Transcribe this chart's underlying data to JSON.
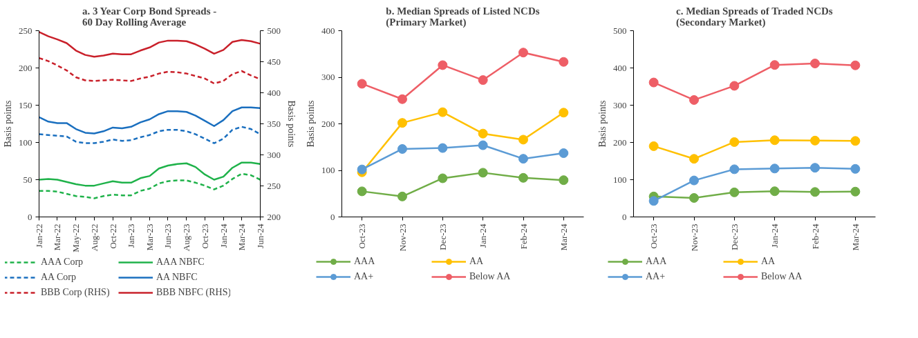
{
  "chart_data": [
    {
      "type": "line",
      "title": "a. 3 Year Corp Bond Spreads -\n60 Day Rolling Average",
      "ylabel": "Basis points",
      "y2label": "Basis points",
      "x": [
        "2022-01-03",
        "2022-02-09",
        "2022-03-17",
        "2022-04-23",
        "2022-05-30",
        "2022-07-06",
        "2022-08-11",
        "2022-09-17",
        "2022-10-24",
        "2022-11-30",
        "2023-01-05",
        "2023-02-11",
        "2023-03-20",
        "2023-04-26",
        "2023-06-01",
        "2023-07-08",
        "2023-08-14",
        "2023-09-19",
        "2023-10-26",
        "2023-12-02",
        "2024-01-08",
        "2024-02-13",
        "2024-03-21",
        "2024-04-27",
        "2024-06-03"
      ],
      "xlim": [
        "2022-01-03",
        "2024-06-03"
      ],
      "xticks": [
        {
          "value": "2022-01-03",
          "label": "Jan-22"
        },
        {
          "value": "2022-03-17",
          "label": "Mar-22"
        },
        {
          "value": "2022-05-30",
          "label": "May-22"
        },
        {
          "value": "2022-08-11",
          "label": "Aug-22"
        },
        {
          "value": "2022-10-24",
          "label": "Oct-22"
        },
        {
          "value": "2023-01-05",
          "label": "Jan-23"
        },
        {
          "value": "2023-03-20",
          "label": "Mar-23"
        },
        {
          "value": "2023-06-01",
          "label": "Jun-23"
        },
        {
          "value": "2023-08-14",
          "label": "Aug-23"
        },
        {
          "value": "2023-10-26",
          "label": "Oct-23"
        },
        {
          "value": "2024-01-08",
          "label": "Jan-24"
        },
        {
          "value": "2024-03-21",
          "label": "Mar-24"
        },
        {
          "value": "2024-06-03",
          "label": "Jun-24"
        }
      ],
      "ylim": [
        0,
        250
      ],
      "yticks": [
        0,
        50,
        100,
        150,
        200,
        250
      ],
      "y2lim": [
        200,
        500
      ],
      "y2ticks": [
        200,
        250,
        300,
        350,
        400,
        450,
        500
      ],
      "grid": false,
      "legend": "bottom",
      "marker": "none",
      "series": [
        {
          "name": "AAA Corp",
          "color": "#1fb24a",
          "line_style": "dashed",
          "values": [
            35,
            35,
            34,
            31,
            28,
            27,
            25,
            28,
            30,
            29,
            29,
            35,
            38,
            45,
            48,
            49,
            49,
            46,
            42,
            37,
            42,
            51,
            58,
            56,
            50
          ]
        },
        {
          "name": "AAA NBFC",
          "color": "#1fb24a",
          "line_style": "solid",
          "values": [
            50,
            51,
            50,
            47,
            44,
            42,
            42,
            45,
            48,
            46,
            46,
            52,
            55,
            65,
            69,
            71,
            72,
            67,
            57,
            50,
            54,
            66,
            73,
            73,
            71
          ]
        },
        {
          "name": "AA Corp",
          "color": "#1a6fbf",
          "line_style": "dashed",
          "values": [
            111,
            110,
            109,
            108,
            101,
            99,
            99,
            101,
            104,
            102,
            103,
            107,
            110,
            115,
            117,
            117,
            115,
            111,
            105,
            99,
            105,
            117,
            121,
            118,
            111
          ]
        },
        {
          "name": "AA NBFC",
          "color": "#1a6fbf",
          "line_style": "solid",
          "values": [
            134,
            128,
            126,
            126,
            118,
            113,
            112,
            115,
            120,
            119,
            121,
            127,
            131,
            138,
            142,
            142,
            141,
            136,
            129,
            122,
            130,
            142,
            147,
            147,
            146
          ]
        },
        {
          "name": "BBB Corp (RHS)",
          "color": "#c9202a",
          "line_style": "dashed",
          "axis": "y2",
          "values": [
            456,
            451,
            444,
            436,
            425,
            420,
            419,
            420,
            421,
            420,
            419,
            423,
            426,
            431,
            434,
            433,
            431,
            427,
            423,
            415,
            419,
            430,
            435,
            428,
            422
          ]
        },
        {
          "name": "BBB NBFC (RHS)",
          "color": "#c9202a",
          "line_style": "solid",
          "axis": "y2",
          "values": [
            498,
            491,
            486,
            480,
            468,
            461,
            458,
            460,
            463,
            462,
            462,
            468,
            473,
            481,
            484,
            484,
            483,
            478,
            471,
            463,
            469,
            482,
            485,
            483,
            479
          ]
        }
      ]
    },
    {
      "type": "line",
      "title": "b. Median Spreads of Listed NCDs\n(Primary Market)",
      "ylabel": "Basis points",
      "categories": [
        "Oct-23",
        "Nov-23",
        "Dec-23",
        "Jan-24",
        "Feb-24",
        "Mar-24"
      ],
      "ylim": [
        0,
        400
      ],
      "yticks": [
        0,
        100,
        200,
        300,
        400
      ],
      "grid": false,
      "legend": "bottom",
      "marker": "circle",
      "line_style": "solid",
      "series": [
        {
          "name": "AAA",
          "color": "#70ad47",
          "values": [
            55,
            44,
            83,
            95,
            84,
            79
          ]
        },
        {
          "name": "AA",
          "color": "#ffc000",
          "values": [
            96,
            202,
            225,
            179,
            166,
            224
          ]
        },
        {
          "name": "AA+",
          "color": "#5b9bd5",
          "values": [
            102,
            146,
            148,
            154,
            125,
            137
          ]
        },
        {
          "name": "Below AA",
          "color": "#ee5e66",
          "values": [
            286,
            253,
            326,
            294,
            353,
            333
          ]
        }
      ]
    },
    {
      "type": "line",
      "title": "c. Median Spreads of Traded NCDs\n(Secondary Market)",
      "ylabel": "Basis points",
      "categories": [
        "Oct-23",
        "Nov-23",
        "Dec-23",
        "Jan-24",
        "Feb-24",
        "Mar-24"
      ],
      "ylim": [
        0,
        500
      ],
      "yticks": [
        0,
        100,
        200,
        300,
        400,
        500
      ],
      "grid": false,
      "legend": "bottom",
      "marker": "circle",
      "line_style": "solid",
      "series": [
        {
          "name": "AAA",
          "color": "#70ad47",
          "values": [
            55,
            51,
            66,
            69,
            67,
            68
          ]
        },
        {
          "name": "AA",
          "color": "#ffc000",
          "values": [
            190,
            156,
            201,
            206,
            205,
            204
          ]
        },
        {
          "name": "AA+",
          "color": "#5b9bd5",
          "values": [
            43,
            98,
            128,
            130,
            132,
            129
          ]
        },
        {
          "name": "Below AA",
          "color": "#ee5e66",
          "values": [
            361,
            314,
            352,
            408,
            412,
            407
          ]
        }
      ]
    }
  ]
}
